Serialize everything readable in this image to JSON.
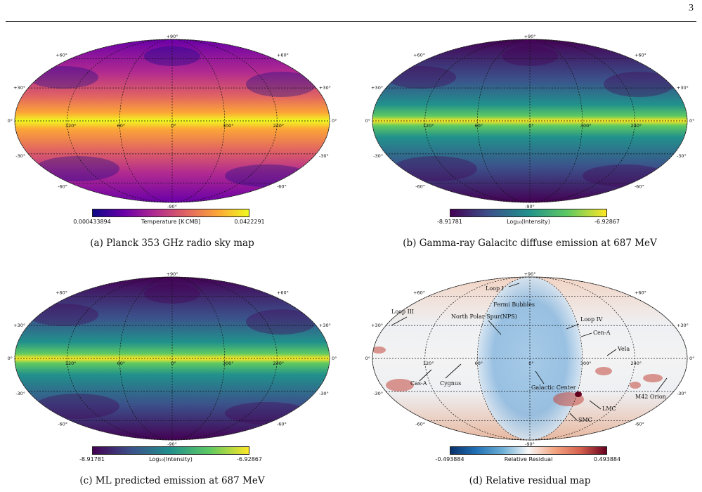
{
  "page_number": "3",
  "panels": [
    {
      "id": "a",
      "caption": "(a) Planck 353 GHz radio sky map",
      "colormap": "plasma",
      "colorbar": {
        "min": "0.000433894",
        "max": "0.0422291",
        "label": "Temperature  [K CMB]"
      }
    },
    {
      "id": "b",
      "caption": "(b) Gamma-ray Galacitc diffuse emission at 687 MeV",
      "colormap": "viridis",
      "colorbar": {
        "min": "-8.91781",
        "max": "-6.92867",
        "label": "Log₁₀(Intensity)"
      }
    },
    {
      "id": "c",
      "caption": "(c) ML predicted emission at 687 MeV",
      "colormap": "viridis",
      "colorbar": {
        "min": "-8.91781",
        "max": "-6.92867",
        "label": "Log₁₀(Intensity)"
      }
    },
    {
      "id": "d",
      "caption": "(d) Relative residual map",
      "colormap": "rdbu",
      "colorbar": {
        "min": "-0.493884",
        "max": "0.493884",
        "label": "Relative Residual"
      }
    }
  ],
  "grid_labels": {
    "lat_top": "+90°",
    "lat_bottom": "-90°",
    "lat_p60": "+60°",
    "lat_p30": "+30°",
    "lat_0": "0°",
    "lat_m30": "-30°",
    "lat_m60": "-60°",
    "lon": [
      "120°",
      "60°",
      "0°",
      "300°",
      "240°"
    ]
  },
  "annotations": {
    "loop1": "Loop I",
    "fermi": "Fermi Bubbles",
    "loop3": "Loop III",
    "nps": "North  Polar  Spur(NPS)",
    "loop4": "Loop IV",
    "cena": "Cen-A",
    "vela": "Vela",
    "casa": "Cas-A",
    "cygnus": "Cygnus",
    "galcenter": "Galactic Center",
    "m42": "M42 Orion",
    "lmc": "LMC",
    "smc": "SMC"
  },
  "colors": {
    "plasma": [
      "#0d0887",
      "#6a00a8",
      "#b12a90",
      "#e16462",
      "#fca636",
      "#f0f921"
    ],
    "viridis": [
      "#440154",
      "#3b528b",
      "#21918c",
      "#5ec962",
      "#fde725"
    ],
    "rdbu": [
      "#08306b",
      "#2171b5",
      "#6baed6",
      "#f7f7f7",
      "#f4a582",
      "#d6604d",
      "#67001f"
    ]
  }
}
